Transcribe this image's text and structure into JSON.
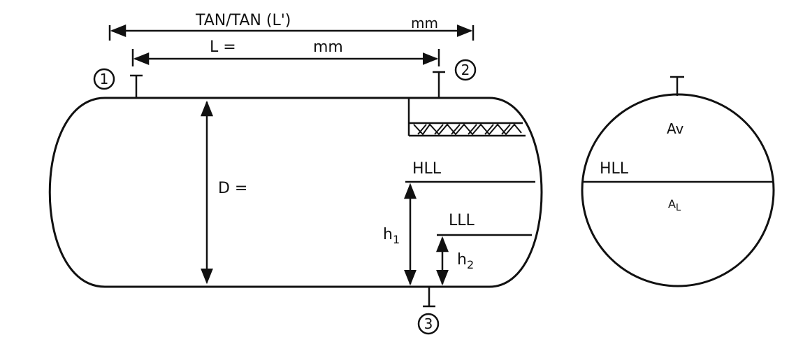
{
  "dimensions": {
    "tan_tan_label": "TAN/TAN (L')",
    "tan_tan_unit": "mm",
    "length_label": "L =",
    "length_unit": "mm",
    "diameter_label": "D ="
  },
  "nozzles": {
    "n1": "1",
    "n2": "2",
    "n3": "3"
  },
  "levels": {
    "high_liquid_level": "HLL",
    "low_liquid_level": "LLL",
    "h1_base": "h",
    "h1_sub": "1",
    "h2_base": "h",
    "h2_sub": "2"
  },
  "cross_section": {
    "vapor_area_label": "Av",
    "level_label": "HLL",
    "liquid_area_base": "A",
    "liquid_area_sub": "L"
  }
}
